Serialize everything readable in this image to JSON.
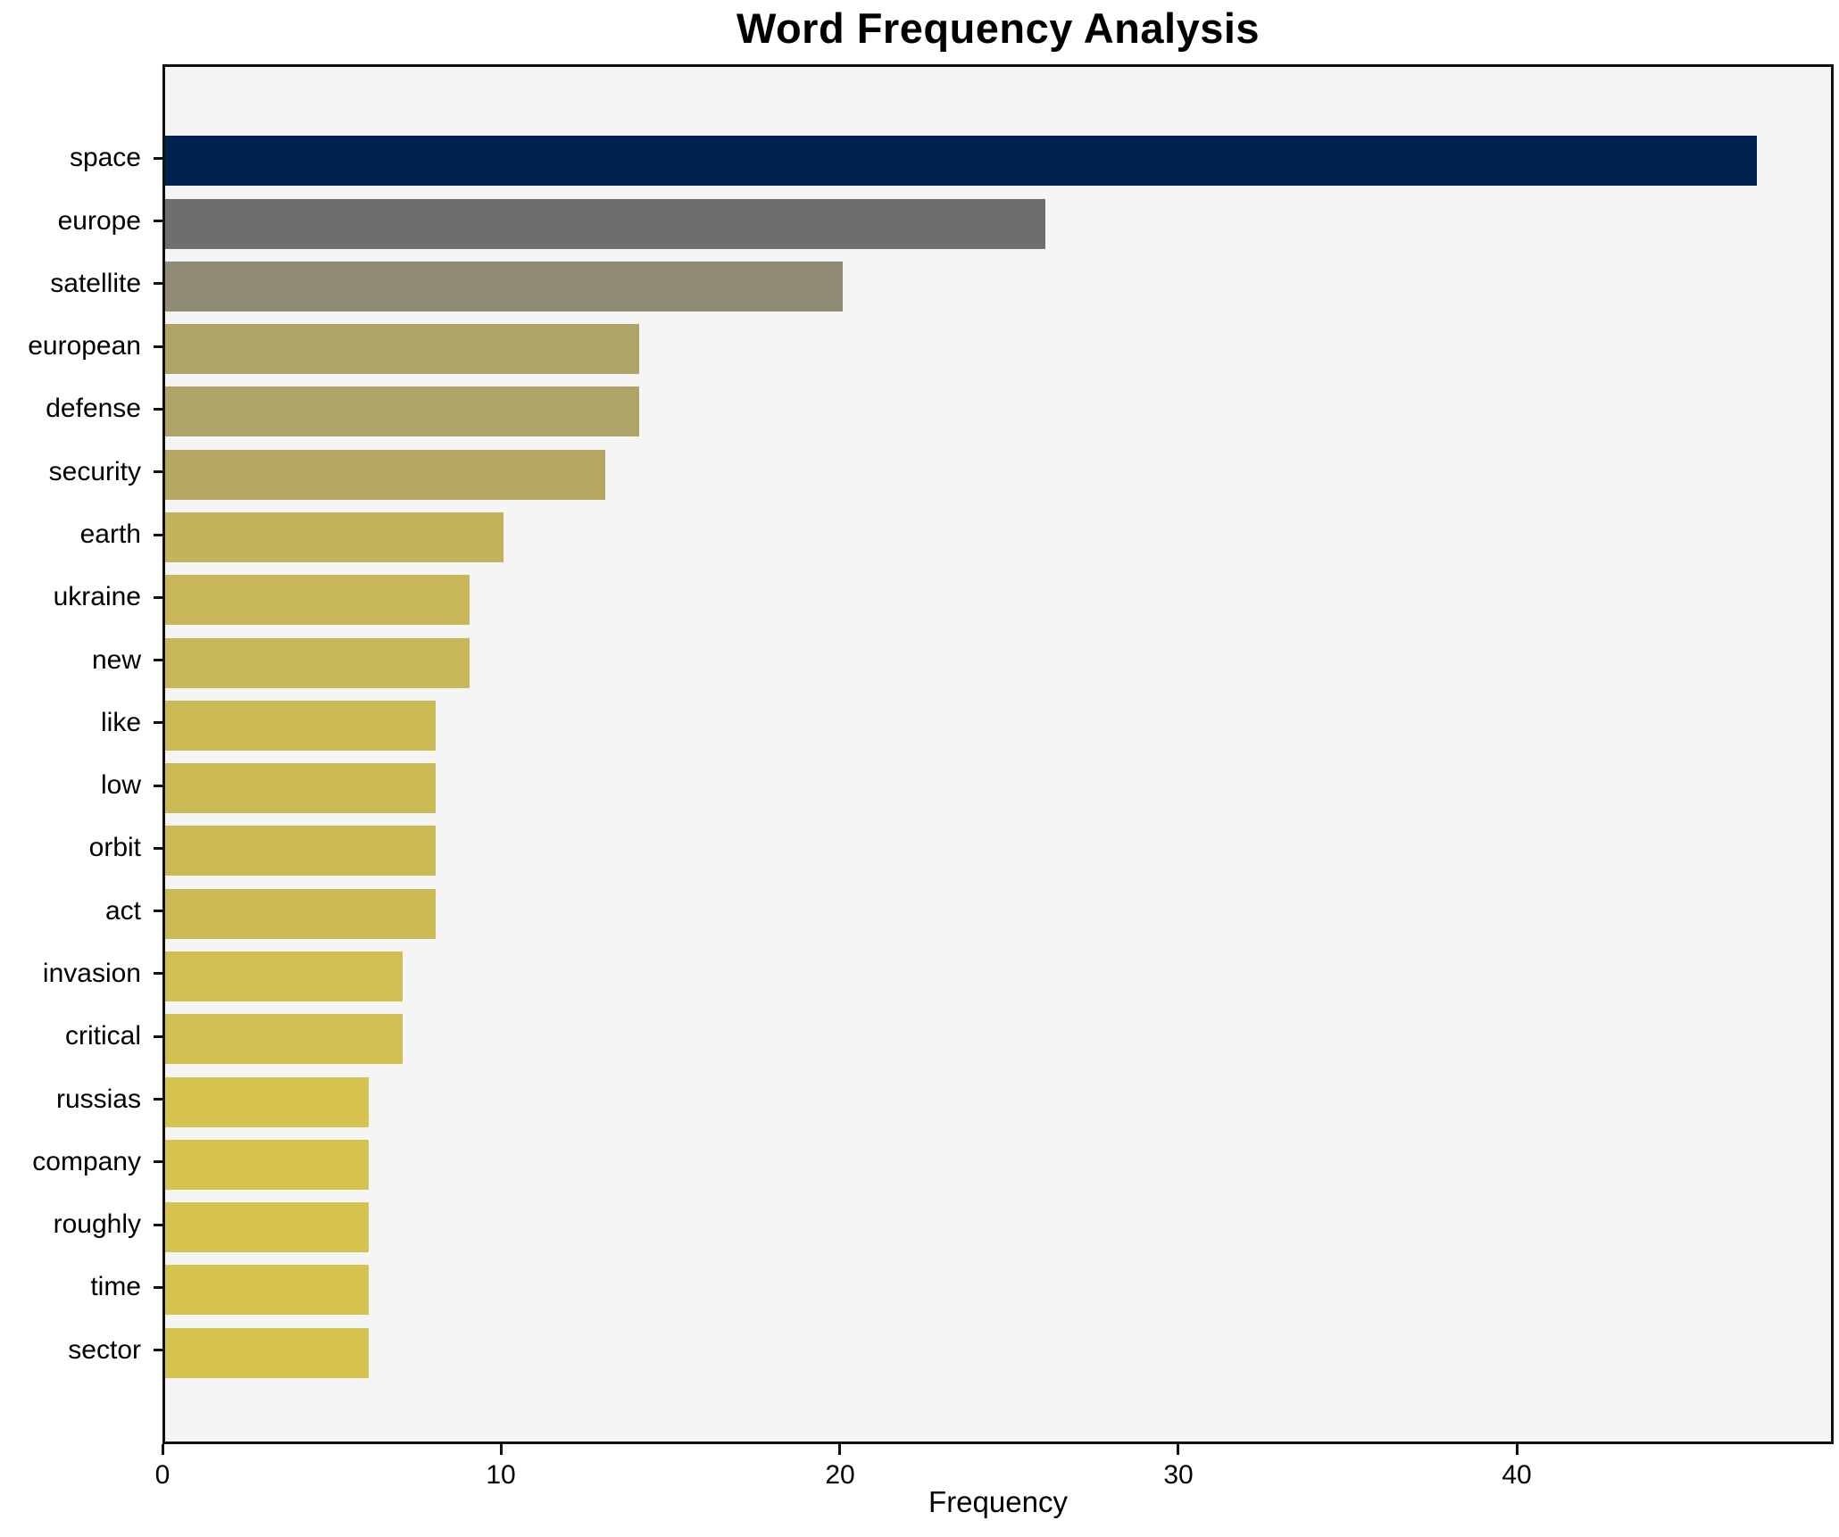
{
  "title": "Word Frequency Analysis",
  "xlabel": "Frequency",
  "chart_data": {
    "type": "bar",
    "orientation": "horizontal",
    "title": "Word Frequency Analysis",
    "xlabel": "Frequency",
    "ylabel": "",
    "categories": [
      "space",
      "europe",
      "satellite",
      "european",
      "defense",
      "security",
      "earth",
      "ukraine",
      "new",
      "like",
      "low",
      "orbit",
      "act",
      "invasion",
      "critical",
      "russias",
      "company",
      "roughly",
      "time",
      "sector"
    ],
    "values": [
      47,
      26,
      20,
      14,
      14,
      13,
      10,
      9,
      9,
      8,
      8,
      8,
      8,
      7,
      7,
      6,
      6,
      6,
      6,
      6
    ],
    "bar_colors": [
      "#00224e",
      "#6e6e71",
      "#908b74",
      "#b0a366",
      "#b0a366",
      "#b5a762",
      "#c3b35a",
      "#c8b757",
      "#c8b757",
      "#ccbb54",
      "#ccbb54",
      "#ccbb54",
      "#ccbb54",
      "#d1bf51",
      "#d1bf51",
      "#d6c44e",
      "#d6c44e",
      "#d6c44e",
      "#d6c44e",
      "#d6c44e"
    ],
    "x_ticks": [
      0,
      10,
      20,
      30,
      40
    ],
    "xlim": [
      0,
      49.35
    ],
    "grid": false,
    "legend": "none",
    "plot_background": "#f5f5f6",
    "figure_background": "#ffffff",
    "spine_color": "#111111"
  }
}
